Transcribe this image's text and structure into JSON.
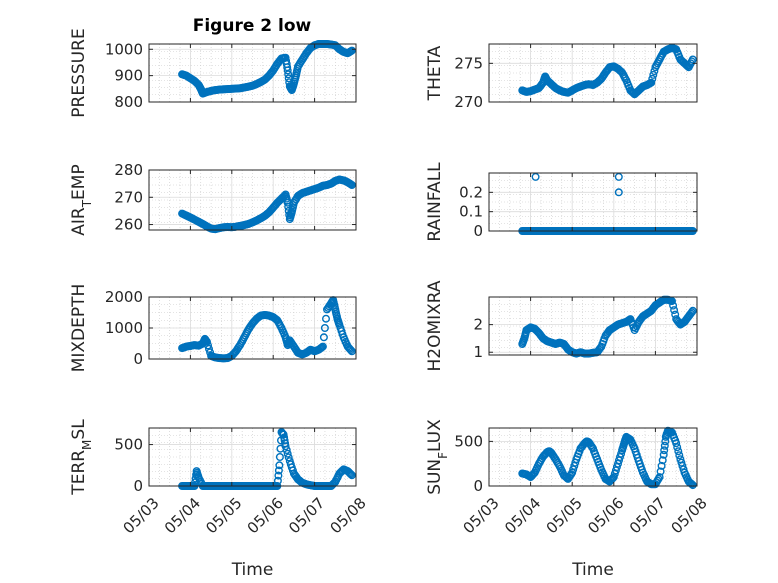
{
  "figure_title": "Figure 2 low",
  "colors": {
    "marker": "#0072BD",
    "axis": "#262626",
    "grid": "#c8c8c8"
  },
  "chart_data": [
    {
      "type": "scatter",
      "title": "Figure 2 low",
      "ylabel": "PRESSURE",
      "ylim": [
        800,
        1020
      ],
      "yticks": [
        800,
        900,
        1000
      ],
      "ytick_labels": [
        "800",
        "900",
        "1000"
      ],
      "xlim": [
        "05/03",
        "05/08"
      ],
      "xticks": [
        "05/03",
        "05/04",
        "05/05",
        "05/06",
        "05/07",
        "05/08"
      ],
      "grid": true,
      "x_day": [
        3.8,
        3.9,
        4.0,
        4.1,
        4.2,
        4.25,
        4.3,
        4.4,
        4.5,
        4.6,
        4.7,
        4.8,
        4.9,
        5.0,
        5.1,
        5.2,
        5.3,
        5.4,
        5.5,
        5.6,
        5.7,
        5.8,
        5.9,
        6.0,
        6.1,
        6.2,
        6.3,
        6.35,
        6.4,
        6.45,
        6.5,
        6.55,
        6.6,
        6.7,
        6.8,
        6.9,
        7.0,
        7.1,
        7.2,
        7.3,
        7.4,
        7.5,
        7.6,
        7.7,
        7.8,
        7.9
      ],
      "y": [
        905,
        900,
        890,
        880,
        865,
        850,
        832,
        838,
        842,
        845,
        847,
        848,
        849,
        850,
        851,
        852,
        855,
        858,
        862,
        868,
        876,
        885,
        900,
        920,
        945,
        965,
        968,
        920,
        860,
        845,
        870,
        900,
        935,
        960,
        985,
        1005,
        1015,
        1020,
        1020,
        1020,
        1018,
        1015,
        1000,
        990,
        985,
        995
      ],
      "x_display": []
    },
    {
      "type": "scatter",
      "ylabel": "THETA",
      "ylim": [
        270,
        277.5
      ],
      "yticks": [
        270,
        275
      ],
      "ytick_labels": [
        "270",
        "275"
      ],
      "xlim": [
        "05/03",
        "05/08"
      ],
      "xticks": [
        "05/03",
        "05/04",
        "05/05",
        "05/06",
        "05/07",
        "05/08"
      ],
      "grid": true,
      "x_day": [
        3.8,
        3.9,
        4.0,
        4.1,
        4.2,
        4.3,
        4.35,
        4.4,
        4.5,
        4.6,
        4.7,
        4.8,
        4.9,
        5.0,
        5.1,
        5.2,
        5.3,
        5.4,
        5.5,
        5.6,
        5.7,
        5.8,
        5.9,
        6.0,
        6.1,
        6.2,
        6.3,
        6.4,
        6.5,
        6.6,
        6.7,
        6.8,
        6.9,
        7.0,
        7.1,
        7.2,
        7.3,
        7.4,
        7.5,
        7.6,
        7.7,
        7.8,
        7.9
      ],
      "y": [
        271.5,
        271.3,
        271.4,
        271.6,
        271.8,
        272.5,
        273.3,
        272.8,
        272.3,
        271.8,
        271.5,
        271.3,
        271.2,
        271.5,
        271.8,
        272.0,
        272.2,
        272.3,
        272.2,
        272.5,
        273.0,
        273.8,
        274.5,
        274.6,
        274.3,
        273.8,
        272.8,
        271.5,
        271.0,
        271.5,
        272.0,
        272.2,
        272.5,
        274.5,
        275.5,
        276.5,
        276.8,
        277.0,
        276.8,
        275.5,
        275.0,
        274.5,
        275.5
      ],
      "x_display": []
    },
    {
      "type": "scatter",
      "ylabel": "AIR_TEMP",
      "ylim": [
        258,
        280
      ],
      "yticks": [
        260,
        270,
        280
      ],
      "ytick_labels": [
        "260",
        "270",
        "280"
      ],
      "xlim": [
        "05/03",
        "05/08"
      ],
      "xticks": [
        "05/03",
        "05/04",
        "05/05",
        "05/06",
        "05/07",
        "05/08"
      ],
      "grid": true,
      "x_day": [
        3.8,
        3.9,
        4.0,
        4.1,
        4.2,
        4.3,
        4.4,
        4.5,
        4.6,
        4.7,
        4.8,
        4.9,
        5.0,
        5.1,
        5.2,
        5.3,
        5.4,
        5.5,
        5.6,
        5.7,
        5.8,
        5.9,
        6.0,
        6.1,
        6.2,
        6.3,
        6.35,
        6.4,
        6.45,
        6.5,
        6.6,
        6.7,
        6.8,
        6.9,
        7.0,
        7.1,
        7.2,
        7.3,
        7.4,
        7.5,
        7.6,
        7.7,
        7.8,
        7.9
      ],
      "y": [
        264.0,
        263.3,
        262.6,
        261.8,
        261.0,
        260.2,
        259.3,
        258.5,
        258.3,
        258.7,
        259.0,
        259.1,
        259.0,
        259.2,
        259.5,
        259.8,
        260.2,
        260.8,
        261.5,
        262.3,
        263.2,
        264.5,
        266.2,
        268.0,
        269.5,
        271.0,
        268.0,
        262.0,
        264.5,
        268.0,
        270.5,
        271.5,
        272.0,
        272.5,
        273.0,
        273.5,
        274.2,
        274.5,
        275.0,
        276.0,
        276.5,
        276.2,
        275.5,
        274.5
      ],
      "x_display": []
    },
    {
      "type": "scatter",
      "ylabel": "RAINFALL",
      "ylim": [
        0,
        0.3
      ],
      "yticks": [
        0,
        0.1,
        0.2
      ],
      "ytick_labels": [
        "0",
        "0.1",
        "0.2"
      ],
      "xlim": [
        "05/03",
        "05/08"
      ],
      "xticks": [
        "05/03",
        "05/04",
        "05/05",
        "05/06",
        "05/07",
        "05/08"
      ],
      "grid": true,
      "x_day": [
        3.8,
        3.9,
        4.0,
        4.1,
        4.2,
        4.3,
        4.4,
        4.5,
        4.6,
        4.7,
        4.8,
        4.9,
        5.0,
        5.1,
        5.2,
        5.3,
        5.4,
        5.5,
        5.6,
        5.7,
        5.8,
        5.9,
        6.0,
        6.1,
        6.2,
        6.3,
        6.4,
        6.5,
        6.6,
        6.7,
        6.8,
        6.9,
        7.0,
        7.1,
        7.2,
        7.3,
        7.4,
        7.5,
        7.6,
        7.7,
        7.8,
        7.9,
        4.12,
        6.12,
        6.12
      ],
      "y": [
        0,
        0,
        0,
        0,
        0,
        0,
        0,
        0,
        0,
        0,
        0,
        0,
        0,
        0,
        0,
        0,
        0,
        0,
        0,
        0,
        0,
        0,
        0,
        0,
        0,
        0,
        0,
        0,
        0,
        0,
        0,
        0,
        0,
        0,
        0,
        0,
        0,
        0,
        0,
        0,
        0,
        0,
        0.28,
        0.28,
        0.2
      ],
      "x_display": []
    },
    {
      "type": "scatter",
      "ylabel": "MIXDEPTH",
      "ylim": [
        0,
        2000
      ],
      "yticks": [
        0,
        1000,
        2000
      ],
      "ytick_labels": [
        "0",
        "1000",
        "2000"
      ],
      "xlim": [
        "05/03",
        "05/08"
      ],
      "xticks": [
        "05/03",
        "05/04",
        "05/05",
        "05/06",
        "05/07",
        "05/08"
      ],
      "grid": true,
      "x_day": [
        3.8,
        3.9,
        4.0,
        4.1,
        4.2,
        4.3,
        4.35,
        4.4,
        4.5,
        4.6,
        4.7,
        4.8,
        4.9,
        5.0,
        5.1,
        5.2,
        5.3,
        5.4,
        5.5,
        5.6,
        5.7,
        5.8,
        5.9,
        6.0,
        6.1,
        6.2,
        6.3,
        6.35,
        6.4,
        6.5,
        6.6,
        6.7,
        6.8,
        6.9,
        7.0,
        7.1,
        7.2,
        7.3,
        7.4,
        7.45,
        7.5,
        7.55,
        7.6,
        7.7,
        7.8,
        7.9
      ],
      "y": [
        350,
        400,
        420,
        450,
        430,
        500,
        650,
        550,
        100,
        50,
        30,
        20,
        30,
        100,
        250,
        450,
        700,
        950,
        1150,
        1300,
        1400,
        1420,
        1400,
        1350,
        1250,
        1000,
        700,
        450,
        600,
        400,
        200,
        150,
        200,
        300,
        250,
        300,
        400,
        1600,
        1800,
        1900,
        1600,
        1300,
        1100,
        700,
        400,
        250
      ],
      "x_display": []
    },
    {
      "type": "scatter",
      "ylabel": "H2OMIXRA",
      "ylim": [
        0.9,
        3.0
      ],
      "yticks": [
        1,
        2
      ],
      "ytick_labels": [
        "1",
        "2"
      ],
      "xlim": [
        "05/03",
        "05/08"
      ],
      "xticks": [
        "05/03",
        "05/04",
        "05/05",
        "05/06",
        "05/07",
        "05/08"
      ],
      "grid": true,
      "x_day": [
        3.8,
        3.85,
        3.9,
        4.0,
        4.1,
        4.2,
        4.3,
        4.4,
        4.5,
        4.6,
        4.7,
        4.8,
        4.9,
        5.0,
        5.1,
        5.2,
        5.3,
        5.4,
        5.5,
        5.6,
        5.7,
        5.8,
        5.9,
        6.0,
        6.1,
        6.2,
        6.3,
        6.4,
        6.5,
        6.6,
        6.7,
        6.8,
        6.9,
        7.0,
        7.1,
        7.2,
        7.3,
        7.4,
        7.5,
        7.6,
        7.7,
        7.8,
        7.9
      ],
      "y": [
        1.3,
        1.5,
        1.8,
        1.9,
        1.85,
        1.7,
        1.5,
        1.4,
        1.35,
        1.3,
        1.35,
        1.3,
        1.1,
        1.0,
        0.95,
        1.0,
        0.95,
        0.95,
        0.98,
        1.0,
        1.2,
        1.6,
        1.8,
        1.9,
        2.0,
        2.05,
        2.1,
        2.2,
        1.8,
        2.1,
        2.3,
        2.4,
        2.5,
        2.7,
        2.8,
        2.9,
        2.9,
        2.85,
        2.2,
        2.0,
        2.1,
        2.3,
        2.5
      ],
      "x_display": []
    },
    {
      "type": "scatter",
      "ylabel": "TERR_MSL",
      "ylim": [
        0,
        700
      ],
      "yticks": [
        0,
        500
      ],
      "ytick_labels": [
        "0",
        "500"
      ],
      "xlim": [
        "05/03",
        "05/08"
      ],
      "xticks": [
        "05/03",
        "05/04",
        "05/05",
        "05/06",
        "05/07",
        "05/08"
      ],
      "xlabel": "Time",
      "grid": true,
      "x_day": [
        3.8,
        3.9,
        4.0,
        4.1,
        4.15,
        4.2,
        4.3,
        4.4,
        4.5,
        4.6,
        4.7,
        4.8,
        4.9,
        5.0,
        5.1,
        5.2,
        5.3,
        5.4,
        5.5,
        5.6,
        5.7,
        5.8,
        5.9,
        6.0,
        6.1,
        6.15,
        6.2,
        6.25,
        6.3,
        6.4,
        6.5,
        6.6,
        6.7,
        6.8,
        6.9,
        7.0,
        7.1,
        7.2,
        7.3,
        7.4,
        7.5,
        7.6,
        7.7,
        7.8,
        7.9
      ],
      "y": [
        0,
        0,
        0,
        0,
        180,
        100,
        0,
        0,
        0,
        0,
        0,
        0,
        0,
        0,
        0,
        0,
        0,
        0,
        0,
        0,
        0,
        0,
        0,
        0,
        0,
        250,
        650,
        620,
        480,
        300,
        150,
        80,
        40,
        20,
        10,
        0,
        0,
        0,
        0,
        0,
        50,
        150,
        200,
        180,
        130
      ],
      "x_display": []
    },
    {
      "type": "scatter",
      "ylabel": "SUN_FLUX",
      "ylim": [
        0,
        650
      ],
      "yticks": [
        0,
        500
      ],
      "ytick_labels": [
        "0",
        "500"
      ],
      "xlim": [
        "05/03",
        "05/08"
      ],
      "xticks": [
        "05/03",
        "05/04",
        "05/05",
        "05/06",
        "05/07",
        "05/08"
      ],
      "xlabel": "Time",
      "grid": true,
      "x_day": [
        3.8,
        3.9,
        4.0,
        4.1,
        4.2,
        4.3,
        4.4,
        4.45,
        4.5,
        4.6,
        4.7,
        4.8,
        4.9,
        5.0,
        5.1,
        5.2,
        5.3,
        5.35,
        5.4,
        5.5,
        5.6,
        5.7,
        5.8,
        5.9,
        6.0,
        6.1,
        6.2,
        6.25,
        6.3,
        6.4,
        6.5,
        6.6,
        6.7,
        6.8,
        6.9,
        7.0,
        7.1,
        7.2,
        7.25,
        7.3,
        7.4,
        7.5,
        7.6,
        7.7,
        7.8,
        7.9
      ],
      "y": [
        140,
        130,
        100,
        150,
        250,
        330,
        380,
        390,
        370,
        300,
        220,
        120,
        80,
        150,
        300,
        420,
        480,
        500,
        490,
        420,
        300,
        180,
        80,
        50,
        100,
        250,
        400,
        480,
        550,
        520,
        420,
        280,
        150,
        50,
        20,
        20,
        100,
        350,
        550,
        620,
        600,
        480,
        300,
        150,
        50,
        10
      ],
      "x_display": []
    }
  ]
}
